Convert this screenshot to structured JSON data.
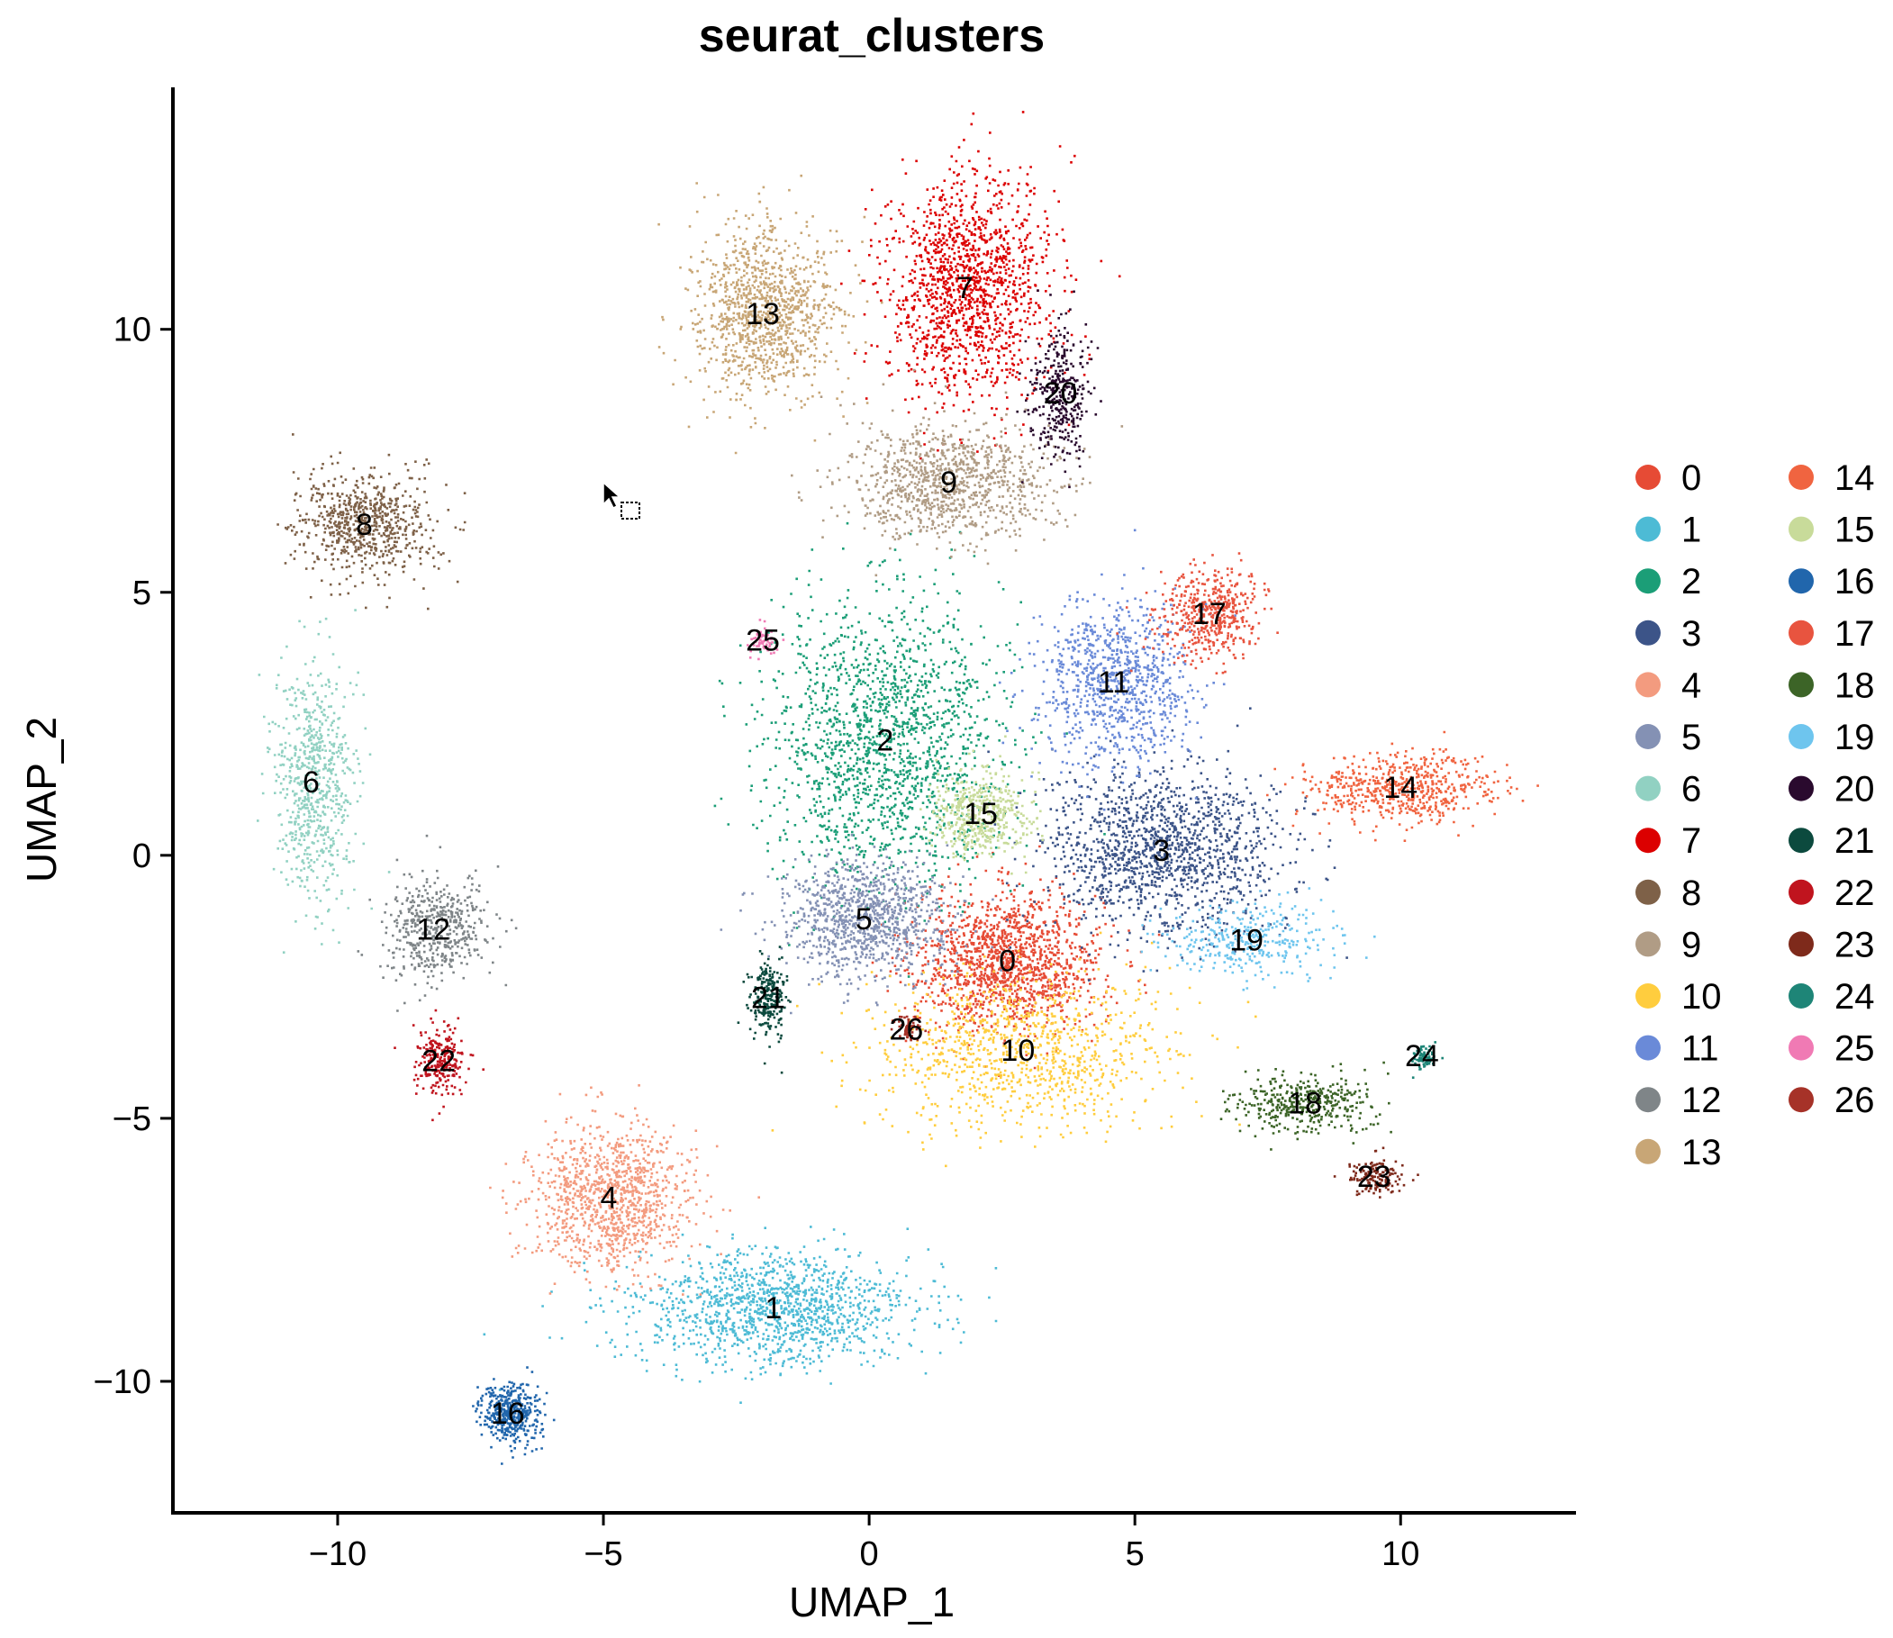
{
  "chart_data": {
    "type": "scatter",
    "title": "seurat_clusters",
    "xlabel": "UMAP_1",
    "ylabel": "UMAP_2",
    "xlim": [
      -13.1,
      13.3
    ],
    "ylim": [
      -12.5,
      14.6
    ],
    "xticks": [
      -10,
      -5,
      0,
      5,
      10
    ],
    "yticks": [
      -10,
      -5,
      0,
      5,
      10
    ],
    "tick_labels": {
      "x": [
        "−10",
        "−5",
        "0",
        "5",
        "10"
      ],
      "y": [
        "−10",
        "−5",
        "0",
        "5",
        "10"
      ]
    },
    "grid": false,
    "legend_position": "right",
    "clusters": [
      {
        "id": "0",
        "color": "#E64B35",
        "label_pos": [
          2.6,
          -2.0
        ],
        "spread": [
          1.6,
          1.2
        ],
        "n": 1400
      },
      {
        "id": "1",
        "color": "#4DBBD5",
        "label_pos": [
          -1.8,
          -8.6
        ],
        "spread": [
          2.4,
          1.0
        ],
        "n": 1300
      },
      {
        "id": "2",
        "color": "#1B9E77",
        "label_pos": [
          0.3,
          2.2
        ],
        "spread": [
          2.0,
          2.4
        ],
        "n": 1700
      },
      {
        "id": "3",
        "color": "#3C5488",
        "label_pos": [
          5.5,
          0.1
        ],
        "spread": [
          2.0,
          1.4
        ],
        "n": 1400
      },
      {
        "id": "4",
        "color": "#F39B7F",
        "label_pos": [
          -4.9,
          -6.5
        ],
        "spread": [
          1.4,
          1.2
        ],
        "n": 1100
      },
      {
        "id": "5",
        "color": "#8491B4",
        "label_pos": [
          -0.1,
          -1.2
        ],
        "spread": [
          1.4,
          1.0
        ],
        "n": 1000
      },
      {
        "id": "6",
        "color": "#91D1C2",
        "label_pos": [
          -10.5,
          1.4
        ],
        "spread": [
          0.7,
          2.0
        ],
        "n": 700
      },
      {
        "id": "7",
        "color": "#DC0000",
        "label_pos": [
          1.8,
          10.8
        ],
        "spread": [
          1.4,
          2.0
        ],
        "n": 1400
      },
      {
        "id": "8",
        "color": "#7E6148",
        "label_pos": [
          -9.5,
          6.3
        ],
        "spread": [
          1.2,
          0.9
        ],
        "n": 700
      },
      {
        "id": "9",
        "color": "#B09C85",
        "label_pos": [
          1.5,
          7.1
        ],
        "spread": [
          1.8,
          1.0
        ],
        "n": 1000
      },
      {
        "id": "10",
        "color": "#FFCD3E",
        "label_pos": [
          2.8,
          -3.7
        ],
        "spread": [
          2.5,
          1.3
        ],
        "n": 1000
      },
      {
        "id": "11",
        "color": "#6A8AD8",
        "label_pos": [
          4.6,
          3.3
        ],
        "spread": [
          1.3,
          1.4
        ],
        "n": 900
      },
      {
        "id": "12",
        "color": "#7F8588",
        "label_pos": [
          -8.2,
          -1.4
        ],
        "spread": [
          0.9,
          0.9
        ],
        "n": 500
      },
      {
        "id": "13",
        "color": "#C8A676",
        "label_pos": [
          -2.0,
          10.3
        ],
        "spread": [
          1.2,
          1.5
        ],
        "n": 1100
      },
      {
        "id": "14",
        "color": "#F06440",
        "label_pos": [
          10.0,
          1.3
        ],
        "spread": [
          1.6,
          0.6
        ],
        "n": 600
      },
      {
        "id": "15",
        "color": "#C8DB9A",
        "label_pos": [
          2.1,
          0.8
        ],
        "spread": [
          0.8,
          0.7
        ],
        "n": 500
      },
      {
        "id": "16",
        "color": "#2166AC",
        "label_pos": [
          -6.8,
          -10.6
        ],
        "spread": [
          0.5,
          0.5
        ],
        "n": 450
      },
      {
        "id": "17",
        "color": "#E8543F",
        "label_pos": [
          6.4,
          4.6
        ],
        "spread": [
          0.9,
          0.8
        ],
        "n": 500
      },
      {
        "id": "18",
        "color": "#3C6427",
        "label_pos": [
          8.2,
          -4.7
        ],
        "spread": [
          1.2,
          0.5
        ],
        "n": 400
      },
      {
        "id": "19",
        "color": "#6EC5EE",
        "label_pos": [
          7.1,
          -1.6
        ],
        "spread": [
          1.4,
          0.6
        ],
        "n": 350
      },
      {
        "id": "20",
        "color": "#2A0A2E",
        "label_pos": [
          3.6,
          8.8
        ],
        "spread": [
          0.5,
          1.2
        ],
        "n": 350
      },
      {
        "id": "21",
        "color": "#0C4A3E",
        "label_pos": [
          -1.9,
          -2.7
        ],
        "spread": [
          0.3,
          0.7
        ],
        "n": 250
      },
      {
        "id": "22",
        "color": "#C0141E",
        "label_pos": [
          -8.1,
          -3.9
        ],
        "spread": [
          0.4,
          0.6
        ],
        "n": 250
      },
      {
        "id": "23",
        "color": "#7E2A1B",
        "label_pos": [
          9.5,
          -6.1
        ],
        "spread": [
          0.4,
          0.3
        ],
        "n": 150
      },
      {
        "id": "24",
        "color": "#1E8577",
        "label_pos": [
          10.4,
          -3.8
        ],
        "spread": [
          0.2,
          0.2
        ],
        "n": 80
      },
      {
        "id": "25",
        "color": "#F07AB4",
        "label_pos": [
          -2.0,
          4.1
        ],
        "spread": [
          0.3,
          0.2
        ],
        "n": 60
      },
      {
        "id": "26",
        "color": "#A63228",
        "label_pos": [
          0.7,
          -3.3
        ],
        "spread": [
          0.2,
          0.2
        ],
        "n": 60
      }
    ]
  }
}
